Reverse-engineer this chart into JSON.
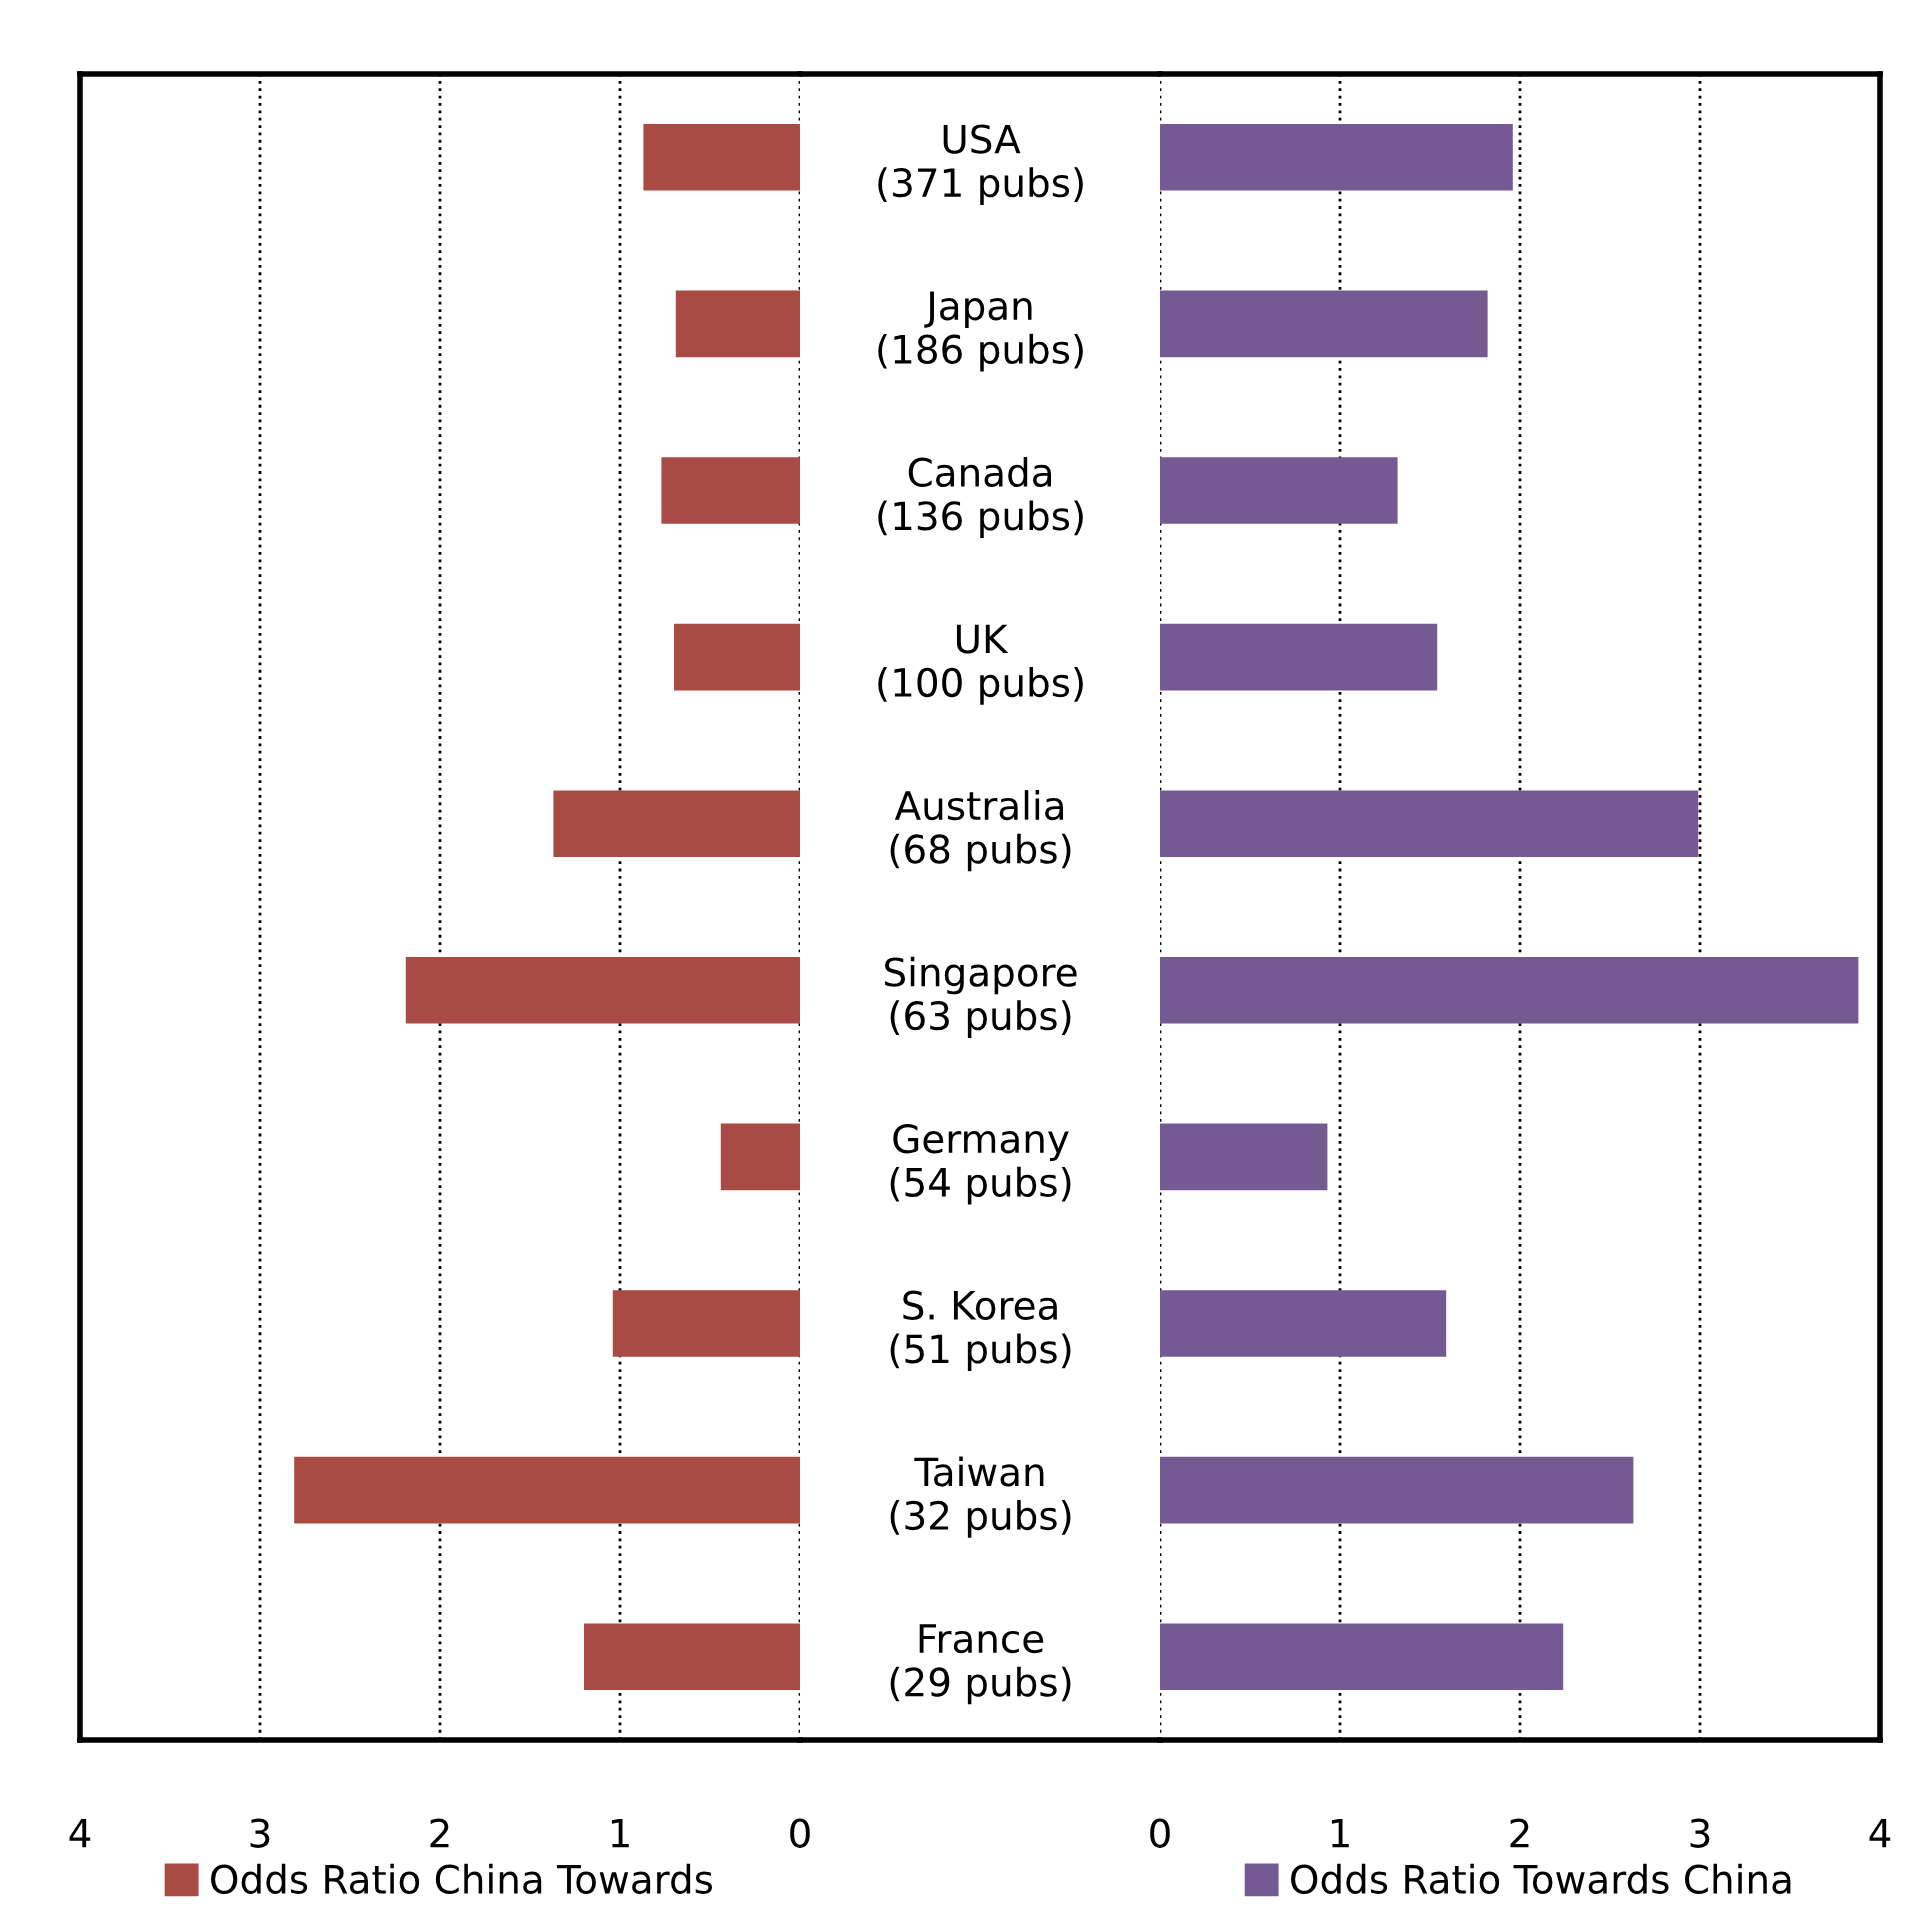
{
  "chart_data": [
    {
      "type": "bar",
      "orientation": "horizontal",
      "categories": [
        "USA\n(371 pubs)",
        "Japan\n(186 pubs)",
        "Canada\n(136 pubs)",
        "UK\n(100 pubs)",
        "Australia\n(68 pubs)",
        "Singapore\n(63 pubs)",
        "Germany\n(54 pubs)",
        "S. Korea\n(51 pubs)",
        "Taiwan\n(32 pubs)",
        "France\n(29 pubs)"
      ],
      "series": [
        {
          "name": "Odds Ratio China Towards",
          "color": "#a94a44",
          "values": [
            0.87,
            0.69,
            0.77,
            0.7,
            1.37,
            2.19,
            0.44,
            1.04,
            2.81,
            1.2
          ]
        }
      ],
      "xlim": [
        4,
        0
      ],
      "xticks": [
        4,
        3,
        2,
        1,
        0
      ],
      "grid": "x",
      "legend": "bottom"
    },
    {
      "type": "bar",
      "orientation": "horizontal",
      "categories": [
        null,
        null,
        null,
        null,
        null,
        null,
        null,
        null,
        null,
        null
      ],
      "series": [
        {
          "name": "Odds Ratio Towards China",
          "color": "#735a92",
          "values": [
            1.96,
            1.82,
            1.32,
            1.54,
            2.99,
            3.88,
            0.93,
            1.59,
            2.63,
            2.24
          ]
        }
      ],
      "xlim": [
        0,
        4
      ],
      "xticks": [
        0,
        1,
        2,
        3,
        4
      ],
      "grid": "x",
      "legend": "bottom",
      "tick_labels": "x"
    }
  ]
}
